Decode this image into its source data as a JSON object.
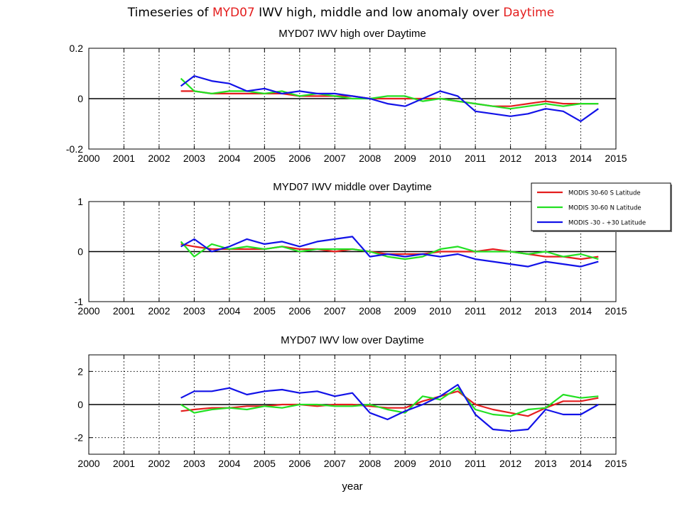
{
  "title": {
    "pre": "Timeseries of ",
    "highlight1": "MYD07",
    "mid": " IWV high, middle and low anomaly over ",
    "highlight2": "Daytime"
  },
  "colors": {
    "red": "#e41e1e",
    "green": "#22e022",
    "blue": "#1212e8",
    "highlight": "#e41e1e"
  },
  "chart_data": [
    {
      "type": "line",
      "title": "MYD07 IWV high over Daytime",
      "xlabel": "",
      "xlim": [
        2000,
        2015
      ],
      "ylim": [
        -0.2,
        0.2
      ],
      "xticks": [
        2000,
        2001,
        2002,
        2003,
        2004,
        2005,
        2006,
        2007,
        2008,
        2009,
        2010,
        2011,
        2012,
        2013,
        2014,
        2015
      ],
      "yticks": [
        -0.2,
        0,
        0.2
      ],
      "ytick_labels": [
        "-0.2",
        "0",
        "0.2"
      ],
      "grid": true,
      "x": [
        2002.62,
        2003.0,
        2003.5,
        2004.0,
        2004.5,
        2005.0,
        2005.5,
        2006.0,
        2006.5,
        2007.0,
        2007.5,
        2008.0,
        2008.5,
        2009.0,
        2009.5,
        2010.0,
        2010.5,
        2011.0,
        2011.5,
        2012.0,
        2012.5,
        2013.0,
        2013.5,
        2014.0,
        2014.5
      ],
      "series": [
        {
          "name": "MODIS 30-60 S Latitude",
          "color": "red",
          "values": [
            0.03,
            0.03,
            0.02,
            0.02,
            0.02,
            0.02,
            0.02,
            0.01,
            0.01,
            0.01,
            0.01,
            0.0,
            0.0,
            0.0,
            0.0,
            0.0,
            -0.01,
            -0.02,
            -0.03,
            -0.03,
            -0.02,
            -0.01,
            -0.02,
            -0.02,
            -0.02
          ]
        },
        {
          "name": "MODIS 30-60 N Latitude",
          "color": "green",
          "values": [
            0.08,
            0.03,
            0.02,
            0.03,
            0.03,
            0.02,
            0.03,
            0.01,
            0.02,
            0.01,
            0.0,
            0.0,
            0.01,
            0.01,
            -0.01,
            0.0,
            -0.01,
            -0.02,
            -0.03,
            -0.04,
            -0.03,
            -0.02,
            -0.03,
            -0.02,
            -0.02
          ]
        },
        {
          "name": "MODIS -30 - +30 Latitude",
          "color": "blue",
          "values": [
            0.05,
            0.09,
            0.07,
            0.06,
            0.03,
            0.04,
            0.02,
            0.03,
            0.02,
            0.02,
            0.01,
            0.0,
            -0.02,
            -0.03,
            0.0,
            0.03,
            0.01,
            -0.05,
            -0.06,
            -0.07,
            -0.06,
            -0.04,
            -0.05,
            -0.09,
            -0.04
          ]
        }
      ]
    },
    {
      "type": "line",
      "title": "MYD07 IWV middle over Daytime",
      "xlabel": "",
      "xlim": [
        2000,
        2015
      ],
      "ylim": [
        -1,
        1
      ],
      "xticks": [
        2000,
        2001,
        2002,
        2003,
        2004,
        2005,
        2006,
        2007,
        2008,
        2009,
        2010,
        2011,
        2012,
        2013,
        2014,
        2015
      ],
      "yticks": [
        -1,
        0,
        1
      ],
      "ytick_labels": [
        "-1",
        "0",
        "1"
      ],
      "grid": true,
      "x": [
        2002.62,
        2003.0,
        2003.5,
        2004.0,
        2004.5,
        2005.0,
        2005.5,
        2006.0,
        2006.5,
        2007.0,
        2007.5,
        2008.0,
        2008.5,
        2009.0,
        2009.5,
        2010.0,
        2010.5,
        2011.0,
        2011.5,
        2012.0,
        2012.5,
        2013.0,
        2013.5,
        2014.0,
        2014.5
      ],
      "series": [
        {
          "name": "MODIS 30-60 S Latitude",
          "color": "red",
          "values": [
            0.15,
            0.1,
            0.05,
            0.05,
            0.05,
            0.05,
            0.1,
            0.05,
            0.05,
            0.0,
            0.05,
            0.0,
            -0.05,
            -0.05,
            -0.05,
            0.0,
            0.0,
            0.0,
            0.05,
            0.0,
            -0.05,
            -0.1,
            -0.1,
            -0.15,
            -0.1
          ]
        },
        {
          "name": "MODIS 30-60 N Latitude",
          "color": "green",
          "values": [
            0.2,
            -0.1,
            0.15,
            0.05,
            0.1,
            0.05,
            0.1,
            0.0,
            0.05,
            0.05,
            0.05,
            0.0,
            -0.1,
            -0.15,
            -0.1,
            0.05,
            0.1,
            0.0,
            0.0,
            0.0,
            -0.05,
            0.0,
            -0.1,
            -0.05,
            -0.15
          ]
        },
        {
          "name": "MODIS -30 - +30 Latitude",
          "color": "blue",
          "values": [
            0.1,
            0.25,
            0.0,
            0.1,
            0.25,
            0.15,
            0.2,
            0.1,
            0.2,
            0.25,
            0.3,
            -0.1,
            -0.05,
            -0.1,
            -0.05,
            -0.1,
            -0.05,
            -0.15,
            -0.2,
            -0.25,
            -0.3,
            -0.2,
            -0.25,
            -0.3,
            -0.2
          ]
        }
      ]
    },
    {
      "type": "line",
      "title": "MYD07 IWV low over Daytime",
      "xlabel": "year",
      "xlim": [
        2000,
        2015
      ],
      "ylim": [
        -3,
        3
      ],
      "xticks": [
        2000,
        2001,
        2002,
        2003,
        2004,
        2005,
        2006,
        2007,
        2008,
        2009,
        2010,
        2011,
        2012,
        2013,
        2014,
        2015
      ],
      "yticks": [
        -2,
        0,
        2
      ],
      "ytick_labels": [
        "-2",
        "0",
        "2"
      ],
      "grid": true,
      "x": [
        2002.62,
        2003.0,
        2003.5,
        2004.0,
        2004.5,
        2005.0,
        2005.5,
        2006.0,
        2006.5,
        2007.0,
        2007.5,
        2008.0,
        2008.5,
        2009.0,
        2009.5,
        2010.0,
        2010.5,
        2011.0,
        2011.5,
        2012.0,
        2012.5,
        2013.0,
        2013.5,
        2014.0,
        2014.5
      ],
      "series": [
        {
          "name": "MODIS 30-60 S Latitude",
          "color": "red",
          "values": [
            -0.4,
            -0.3,
            -0.2,
            -0.2,
            -0.1,
            -0.1,
            0.0,
            0.0,
            -0.1,
            0.0,
            0.0,
            -0.1,
            -0.2,
            -0.2,
            0.2,
            0.5,
            0.8,
            0.0,
            -0.3,
            -0.5,
            -0.7,
            -0.2,
            0.2,
            0.2,
            0.4
          ]
        },
        {
          "name": "MODIS 30-60 N Latitude",
          "color": "green",
          "values": [
            0.0,
            -0.5,
            -0.3,
            -0.2,
            -0.3,
            -0.1,
            -0.2,
            0.0,
            0.0,
            -0.1,
            -0.1,
            0.0,
            -0.3,
            -0.5,
            0.5,
            0.3,
            1.0,
            -0.3,
            -0.6,
            -0.7,
            -0.3,
            -0.2,
            0.6,
            0.4,
            0.5
          ]
        },
        {
          "name": "MODIS -30 - +30 Latitude",
          "color": "blue",
          "values": [
            0.4,
            0.8,
            0.8,
            1.0,
            0.6,
            0.8,
            0.9,
            0.7,
            0.8,
            0.5,
            0.7,
            -0.5,
            -0.9,
            -0.4,
            0.0,
            0.5,
            1.2,
            -0.6,
            -1.5,
            -1.6,
            -1.5,
            -0.3,
            -0.6,
            -0.6,
            0.0
          ]
        }
      ]
    }
  ],
  "legend": {
    "placement": "right of middle panel title",
    "entries": [
      {
        "label": "MODIS 30-60 S Latitude",
        "color": "red"
      },
      {
        "label": "MODIS 30-60 N Latitude",
        "color": "green"
      },
      {
        "label": "MODIS -30 - +30 Latitude",
        "color": "blue"
      }
    ]
  }
}
